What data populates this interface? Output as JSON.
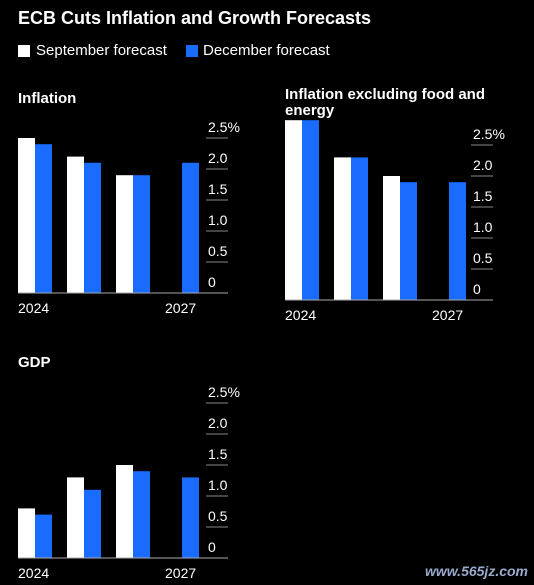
{
  "title": "ECB Cuts Inflation and Growth Forecasts",
  "watermark": "www.565jz.com",
  "chart_data": [
    {
      "type": "bar",
      "title": "Inflation",
      "categories": [
        "2024",
        null,
        null,
        "2027"
      ],
      "series": [
        {
          "name": "September forecast",
          "color": "#ffffff",
          "values": [
            2.5,
            2.2,
            1.9,
            null
          ]
        },
        {
          "name": "December forecast",
          "color": "#1a6cff",
          "values": [
            2.4,
            2.1,
            1.9,
            2.1
          ]
        }
      ],
      "ylim": [
        0,
        3
      ],
      "yticks": [
        0,
        0.5,
        {
          "value": 1,
          "label": "1.0"
        },
        1.5,
        {
          "value": 2,
          "label": "2.0"
        },
        {
          "value": 2.5,
          "label": "2.5%"
        }
      ]
    },
    {
      "type": "bar",
      "title": "Inflation excluding food and energy",
      "categories": [
        "2024",
        null,
        null,
        "2027"
      ],
      "series": [
        {
          "name": "September forecast",
          "color": "#ffffff",
          "values": [
            2.9,
            2.3,
            2.0,
            null
          ]
        },
        {
          "name": "December forecast",
          "color": "#1a6cff",
          "values": [
            2.9,
            2.3,
            1.9,
            1.9
          ]
        }
      ],
      "ylim": [
        0,
        3
      ],
      "yticks": [
        0,
        0.5,
        {
          "value": 1,
          "label": "1.0"
        },
        1.5,
        {
          "value": 2,
          "label": "2.0"
        },
        {
          "value": 2.5,
          "label": "2.5%"
        }
      ]
    },
    {
      "type": "bar",
      "title": "GDP",
      "categories": [
        "2024",
        null,
        null,
        "2027"
      ],
      "series": [
        {
          "name": "September forecast",
          "color": "#ffffff",
          "values": [
            0.8,
            1.3,
            1.5,
            null
          ]
        },
        {
          "name": "December forecast",
          "color": "#1a6cff",
          "values": [
            0.7,
            1.1,
            1.4,
            1.3
          ]
        }
      ],
      "ylim": [
        0,
        3
      ],
      "yticks": [
        0,
        0.5,
        {
          "value": 1,
          "label": "1.0"
        },
        1.5,
        {
          "value": 2,
          "label": "2.0"
        },
        {
          "value": 2.5,
          "label": "2.5%"
        }
      ]
    }
  ]
}
